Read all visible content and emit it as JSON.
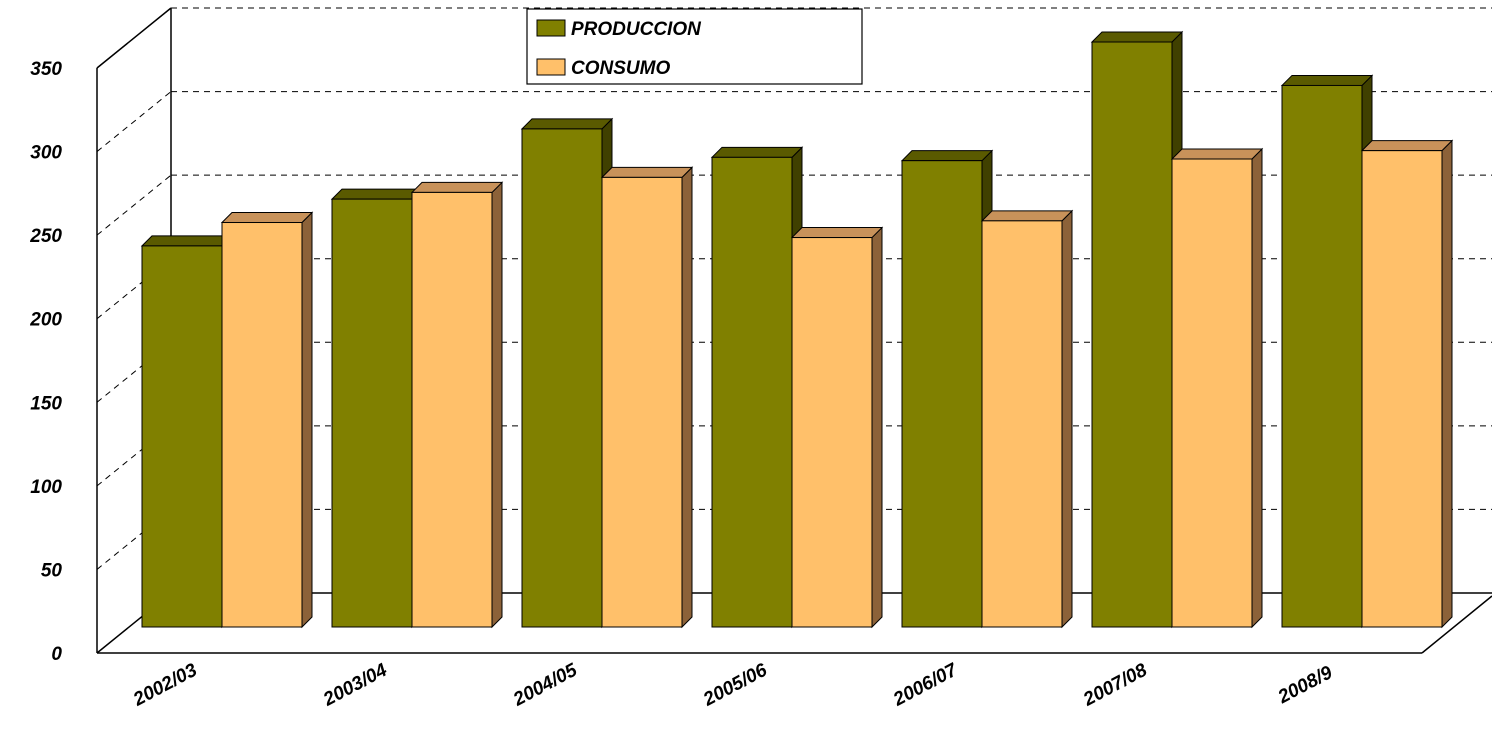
{
  "chart_data": {
    "type": "bar",
    "categories": [
      "2002/03",
      "2003/04",
      "2004/05",
      "2005/06",
      "2006/07",
      "2007/08",
      "2008/9"
    ],
    "series": [
      {
        "name": "PRODUCCION",
        "values": [
          228,
          256,
          298,
          281,
          279,
          350,
          324
        ],
        "color": "#808000",
        "side_color": "#404000",
        "top_color": "#5a5a00"
      },
      {
        "name": "CONSUMO",
        "values": [
          242,
          260,
          269,
          233,
          243,
          280,
          285
        ],
        "color": "#ffc06a",
        "side_color": "#8c6239",
        "top_color": "#c8925a"
      }
    ],
    "y_ticks": [
      "0",
      "50",
      "100",
      "150",
      "200",
      "250",
      "300",
      "350"
    ],
    "ylim": [
      0,
      350
    ],
    "grid": true,
    "legend_position": "top"
  }
}
